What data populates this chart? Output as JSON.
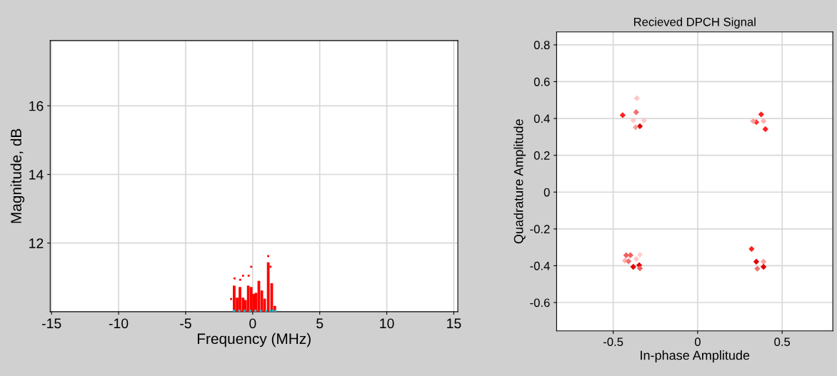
{
  "chart_data": [
    {
      "type": "bar",
      "xlabel": "Frequency (MHz)",
      "ylabel": "Magnitude, dB",
      "xlim": [
        -15.1,
        15.3
      ],
      "ylim": [
        10,
        17.9
      ],
      "xticks": [
        -15,
        -10,
        -5,
        0,
        5,
        10,
        15
      ],
      "yticks": [
        12,
        14,
        16
      ],
      "grid": true,
      "series": [
        {
          "type": "bar",
          "color": "#ff0000",
          "x": [
            -1.38,
            -1.16,
            -0.95,
            -0.72,
            -0.54,
            -0.33,
            -0.11,
            0.07,
            0.25,
            0.46,
            0.68,
            0.89,
            1.16,
            1.42,
            1.65
          ],
          "values": [
            10.76,
            10.41,
            10.72,
            10.41,
            10.34,
            10.76,
            10.72,
            10.52,
            10.55,
            10.9,
            10.62,
            10.38,
            11.44,
            10.83,
            10.17
          ]
        },
        {
          "type": "scatter",
          "color": "#ff0000",
          "x": [
            -1.61,
            -1.35,
            -0.93,
            -0.72,
            -0.3,
            -0.11,
            1.16,
            1.33
          ],
          "values": [
            10.37,
            10.97,
            10.93,
            11.05,
            11.05,
            11.31,
            11.62,
            11.31
          ]
        },
        {
          "type": "scatter",
          "color": "#00d0e0",
          "x": [
            -1.4,
            -1.0,
            -0.6,
            -0.2,
            0.2,
            0.6,
            1.0,
            1.3,
            1.5,
            1.7
          ],
          "values": [
            10.03,
            10.03,
            10.03,
            10.03,
            10.03,
            10.03,
            10.03,
            10.03,
            10.03,
            10.03
          ]
        }
      ]
    },
    {
      "type": "scatter",
      "title": "Recieved DPCH Signal",
      "xlabel": "In-phase Amplitude",
      "ylabel": "Quadrature Amplitude",
      "xlim": [
        -0.835,
        0.8
      ],
      "ylim": [
        -0.754,
        0.87
      ],
      "xticks": [
        -0.5,
        0,
        0.5
      ],
      "yticks": [
        -0.6,
        -0.4,
        -0.2,
        0,
        0.2,
        0.4,
        0.6,
        0.8
      ],
      "grid": true,
      "marker": "diamond",
      "series": [
        {
          "x": [
            -0.444,
            -0.36,
            -0.364,
            -0.381,
            -0.318,
            -0.342,
            -0.367,
            0.376,
            0.347,
            0.329,
            0.39,
            0.401,
            -0.423,
            -0.398,
            -0.43,
            -0.409,
            -0.363,
            -0.342,
            -0.381,
            -0.346,
            -0.342,
            0.319,
            0.347,
            0.39,
            0.353,
            0.39
          ],
          "values": [
            0.418,
            0.51,
            0.434,
            0.39,
            0.39,
            0.358,
            0.352,
            0.422,
            0.38,
            0.386,
            0.386,
            0.342,
            -0.343,
            -0.343,
            -0.372,
            -0.376,
            -0.363,
            -0.34,
            -0.406,
            -0.397,
            -0.414,
            -0.309,
            -0.378,
            -0.378,
            -0.416,
            -0.406
          ],
          "colors": [
            "#ff2020",
            "#ffc8c8",
            "#f07070",
            "#ffc8c8",
            "#ffc8c8",
            "#e00000",
            "#f4a0a0",
            "#ff2020",
            "#ff3030",
            "#f8a0a0",
            "#ffb0b0",
            "#ff2020",
            "#f06060",
            "#f06060",
            "#ffb0b0",
            "#f07070",
            "#ffc8c8",
            "#ffd0d0",
            "#e00000",
            "#e00000",
            "#f06060",
            "#ff2020",
            "#e00000",
            "#f8a0a0",
            "#f07070",
            "#e00000"
          ]
        }
      ]
    }
  ]
}
